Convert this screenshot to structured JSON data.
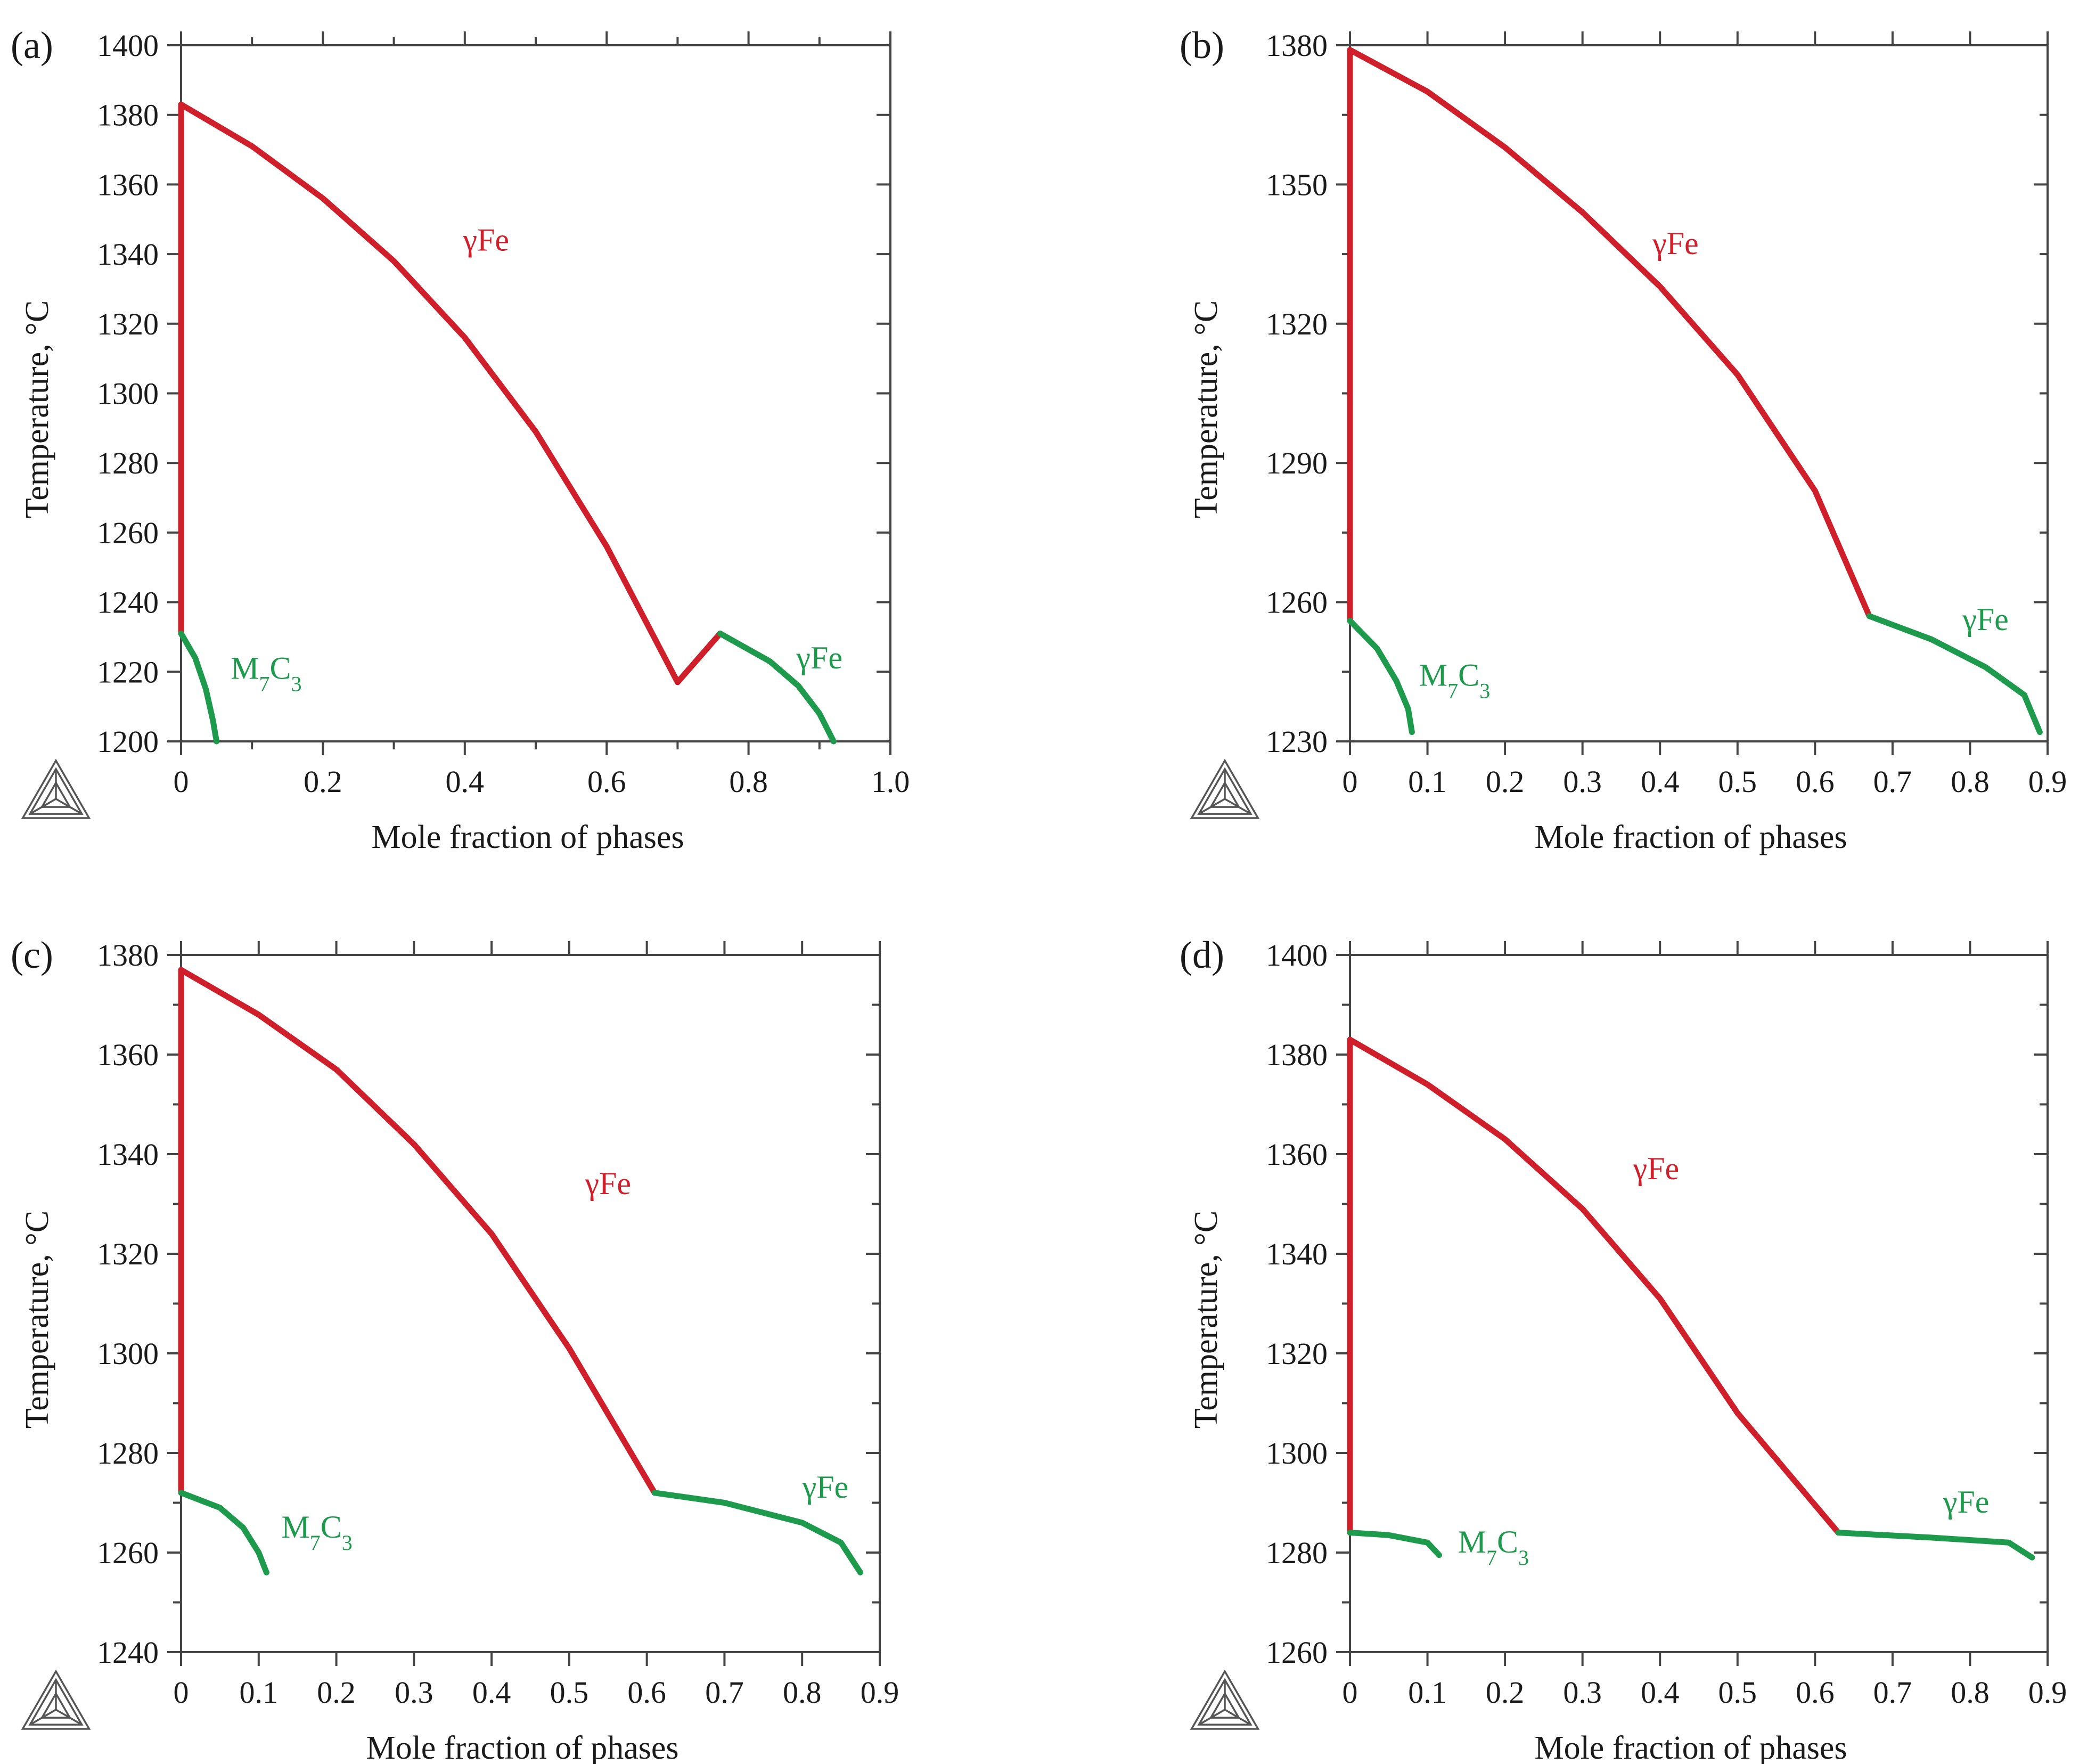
{
  "figure": {
    "colors": {
      "liquid_curve": "#cf1f2a",
      "solid_curve": "#1e9a4c",
      "axis": "#444444"
    }
  },
  "chart_data": [
    {
      "panel": "(a)",
      "type": "line",
      "xlabel": "Mole fraction of phases",
      "ylabel": "Temperature, °C",
      "xlim": [
        0,
        1.0
      ],
      "ylim": [
        1200,
        1400
      ],
      "x_ticks": [
        "0",
        "0.2",
        "0.4",
        "0.6",
        "0.8",
        "1.0"
      ],
      "x_tick_values": [
        0,
        0.2,
        0.4,
        0.6,
        0.8,
        1.0
      ],
      "x_minor_step": 0.1,
      "y_ticks": [
        "1200",
        "1220",
        "1240",
        "1260",
        "1280",
        "1300",
        "1320",
        "1340",
        "1360",
        "1380",
        "1400"
      ],
      "y_tick_values": [
        1200,
        1220,
        1240,
        1260,
        1280,
        1300,
        1320,
        1340,
        1360,
        1380,
        1400
      ],
      "grid": false,
      "series": [
        {
          "label": "γFe",
          "color": "#cf1f2a",
          "label_at": [
            0.43,
            1341
          ],
          "points": [
            [
              0,
              1231
            ],
            [
              0,
              1383
            ],
            [
              0.1,
              1371
            ],
            [
              0.2,
              1356
            ],
            [
              0.3,
              1338
            ],
            [
              0.4,
              1316
            ],
            [
              0.5,
              1289
            ],
            [
              0.6,
              1256
            ],
            [
              0.7,
              1217
            ],
            [
              0.76,
              1231
            ]
          ]
        },
        {
          "label": "M7C3",
          "color": "#1e9a4c",
          "label_at": [
            0.12,
            1218
          ],
          "points": [
            [
              0,
              1231
            ],
            [
              0.02,
              1224
            ],
            [
              0.035,
              1215
            ],
            [
              0.045,
              1206
            ],
            [
              0.05,
              1200
            ]
          ]
        },
        {
          "label": "γFe",
          "color": "#1e9a4c",
          "label_at": [
            0.9,
            1221
          ],
          "points": [
            [
              0.76,
              1231
            ],
            [
              0.83,
              1223
            ],
            [
              0.87,
              1216
            ],
            [
              0.9,
              1208
            ],
            [
              0.92,
              1200
            ]
          ]
        }
      ]
    },
    {
      "panel": "(b)",
      "type": "line",
      "xlabel": "Mole fraction of phases",
      "ylabel": "Temperature, °C",
      "xlim": [
        0,
        0.9
      ],
      "ylim": [
        1230,
        1380
      ],
      "x_ticks": [
        "0",
        "0.1",
        "0.2",
        "0.3",
        "0.4",
        "0.5",
        "0.6",
        "0.7",
        "0.8",
        "0.9"
      ],
      "x_tick_values": [
        0,
        0.1,
        0.2,
        0.3,
        0.4,
        0.5,
        0.6,
        0.7,
        0.8,
        0.9
      ],
      "x_minor_step": 0.1,
      "y_ticks": [
        "1230",
        "1260",
        "1290",
        "1320",
        "1350",
        "1380"
      ],
      "y_tick_values": [
        1230,
        1260,
        1290,
        1320,
        1350,
        1380
      ],
      "y_minor_step": 15,
      "grid": false,
      "series": [
        {
          "label": "γFe",
          "color": "#cf1f2a",
          "label_at": [
            0.42,
            1335
          ],
          "points": [
            [
              0,
              1256
            ],
            [
              0,
              1379
            ],
            [
              0.1,
              1370
            ],
            [
              0.2,
              1358
            ],
            [
              0.3,
              1344
            ],
            [
              0.4,
              1328
            ],
            [
              0.5,
              1309
            ],
            [
              0.6,
              1284
            ],
            [
              0.67,
              1257
            ]
          ]
        },
        {
          "label": "M7C3",
          "color": "#1e9a4c",
          "label_at": [
            0.135,
            1242
          ],
          "points": [
            [
              0,
              1256
            ],
            [
              0.035,
              1250
            ],
            [
              0.06,
              1243
            ],
            [
              0.075,
              1237
            ],
            [
              0.08,
              1232
            ]
          ]
        },
        {
          "label": "γFe",
          "color": "#1e9a4c",
          "label_at": [
            0.82,
            1254
          ],
          "points": [
            [
              0.67,
              1257
            ],
            [
              0.75,
              1252
            ],
            [
              0.82,
              1246
            ],
            [
              0.87,
              1240
            ],
            [
              0.89,
              1232
            ]
          ]
        }
      ]
    },
    {
      "panel": "(c)",
      "type": "line",
      "xlabel": "Mole fraction of phases",
      "ylabel": "Temperature, °C",
      "xlim": [
        0,
        0.9
      ],
      "ylim": [
        1240,
        1380
      ],
      "x_ticks": [
        "0",
        "0.1",
        "0.2",
        "0.3",
        "0.4",
        "0.5",
        "0.6",
        "0.7",
        "0.8",
        "0.9"
      ],
      "x_tick_values": [
        0,
        0.1,
        0.2,
        0.3,
        0.4,
        0.5,
        0.6,
        0.7,
        0.8,
        0.9
      ],
      "x_minor_step": 0.1,
      "y_ticks": [
        "1240",
        "1260",
        "1280",
        "1300",
        "1320",
        "1340",
        "1360",
        "1380"
      ],
      "y_tick_values": [
        1240,
        1260,
        1280,
        1300,
        1320,
        1340,
        1360,
        1380
      ],
      "y_minor_step": 10,
      "grid": false,
      "series": [
        {
          "label": "γFe",
          "color": "#cf1f2a",
          "label_at": [
            0.55,
            1332
          ],
          "points": [
            [
              0,
              1272
            ],
            [
              0,
              1377
            ],
            [
              0.1,
              1368
            ],
            [
              0.2,
              1357
            ],
            [
              0.3,
              1342
            ],
            [
              0.4,
              1324
            ],
            [
              0.5,
              1301
            ],
            [
              0.61,
              1272
            ]
          ]
        },
        {
          "label": "M7C3",
          "color": "#1e9a4c",
          "label_at": [
            0.175,
            1263
          ],
          "points": [
            [
              0,
              1272
            ],
            [
              0.05,
              1269
            ],
            [
              0.08,
              1265
            ],
            [
              0.1,
              1260
            ],
            [
              0.11,
              1256
            ]
          ]
        },
        {
          "label": "γFe",
          "color": "#1e9a4c",
          "label_at": [
            0.83,
            1271
          ],
          "points": [
            [
              0.61,
              1272
            ],
            [
              0.7,
              1270
            ],
            [
              0.8,
              1266
            ],
            [
              0.85,
              1262
            ],
            [
              0.875,
              1256
            ]
          ]
        }
      ]
    },
    {
      "panel": "(d)",
      "type": "line",
      "xlabel": "Mole fraction of phases",
      "ylabel": "Temperature, °C",
      "xlim": [
        0,
        0.9
      ],
      "ylim": [
        1260,
        1400
      ],
      "x_ticks": [
        "0",
        "0.1",
        "0.2",
        "0.3",
        "0.4",
        "0.5",
        "0.6",
        "0.7",
        "0.8",
        "0.9"
      ],
      "x_tick_values": [
        0,
        0.1,
        0.2,
        0.3,
        0.4,
        0.5,
        0.6,
        0.7,
        0.8,
        0.9
      ],
      "x_minor_step": 0.1,
      "y_ticks": [
        "1260",
        "1280",
        "1300",
        "1320",
        "1340",
        "1360",
        "1380",
        "1400"
      ],
      "y_tick_values": [
        1260,
        1280,
        1300,
        1320,
        1340,
        1360,
        1380,
        1400
      ],
      "y_minor_step": 10,
      "grid": false,
      "series": [
        {
          "label": "γFe",
          "color": "#cf1f2a",
          "label_at": [
            0.395,
            1355
          ],
          "points": [
            [
              0,
              1284
            ],
            [
              0,
              1383
            ],
            [
              0.1,
              1374
            ],
            [
              0.2,
              1363
            ],
            [
              0.3,
              1349
            ],
            [
              0.4,
              1331
            ],
            [
              0.5,
              1308
            ],
            [
              0.63,
              1284
            ]
          ]
        },
        {
          "label": "M7C3",
          "color": "#1e9a4c",
          "label_at": [
            0.185,
            1280
          ],
          "points": [
            [
              0,
              1284
            ],
            [
              0.05,
              1283.5
            ],
            [
              0.1,
              1282
            ],
            [
              0.115,
              1279.5
            ]
          ]
        },
        {
          "label": "γFe",
          "color": "#1e9a4c",
          "label_at": [
            0.795,
            1288
          ],
          "points": [
            [
              0.63,
              1284
            ],
            [
              0.75,
              1283
            ],
            [
              0.85,
              1282
            ],
            [
              0.88,
              1279
            ]
          ]
        }
      ]
    }
  ]
}
